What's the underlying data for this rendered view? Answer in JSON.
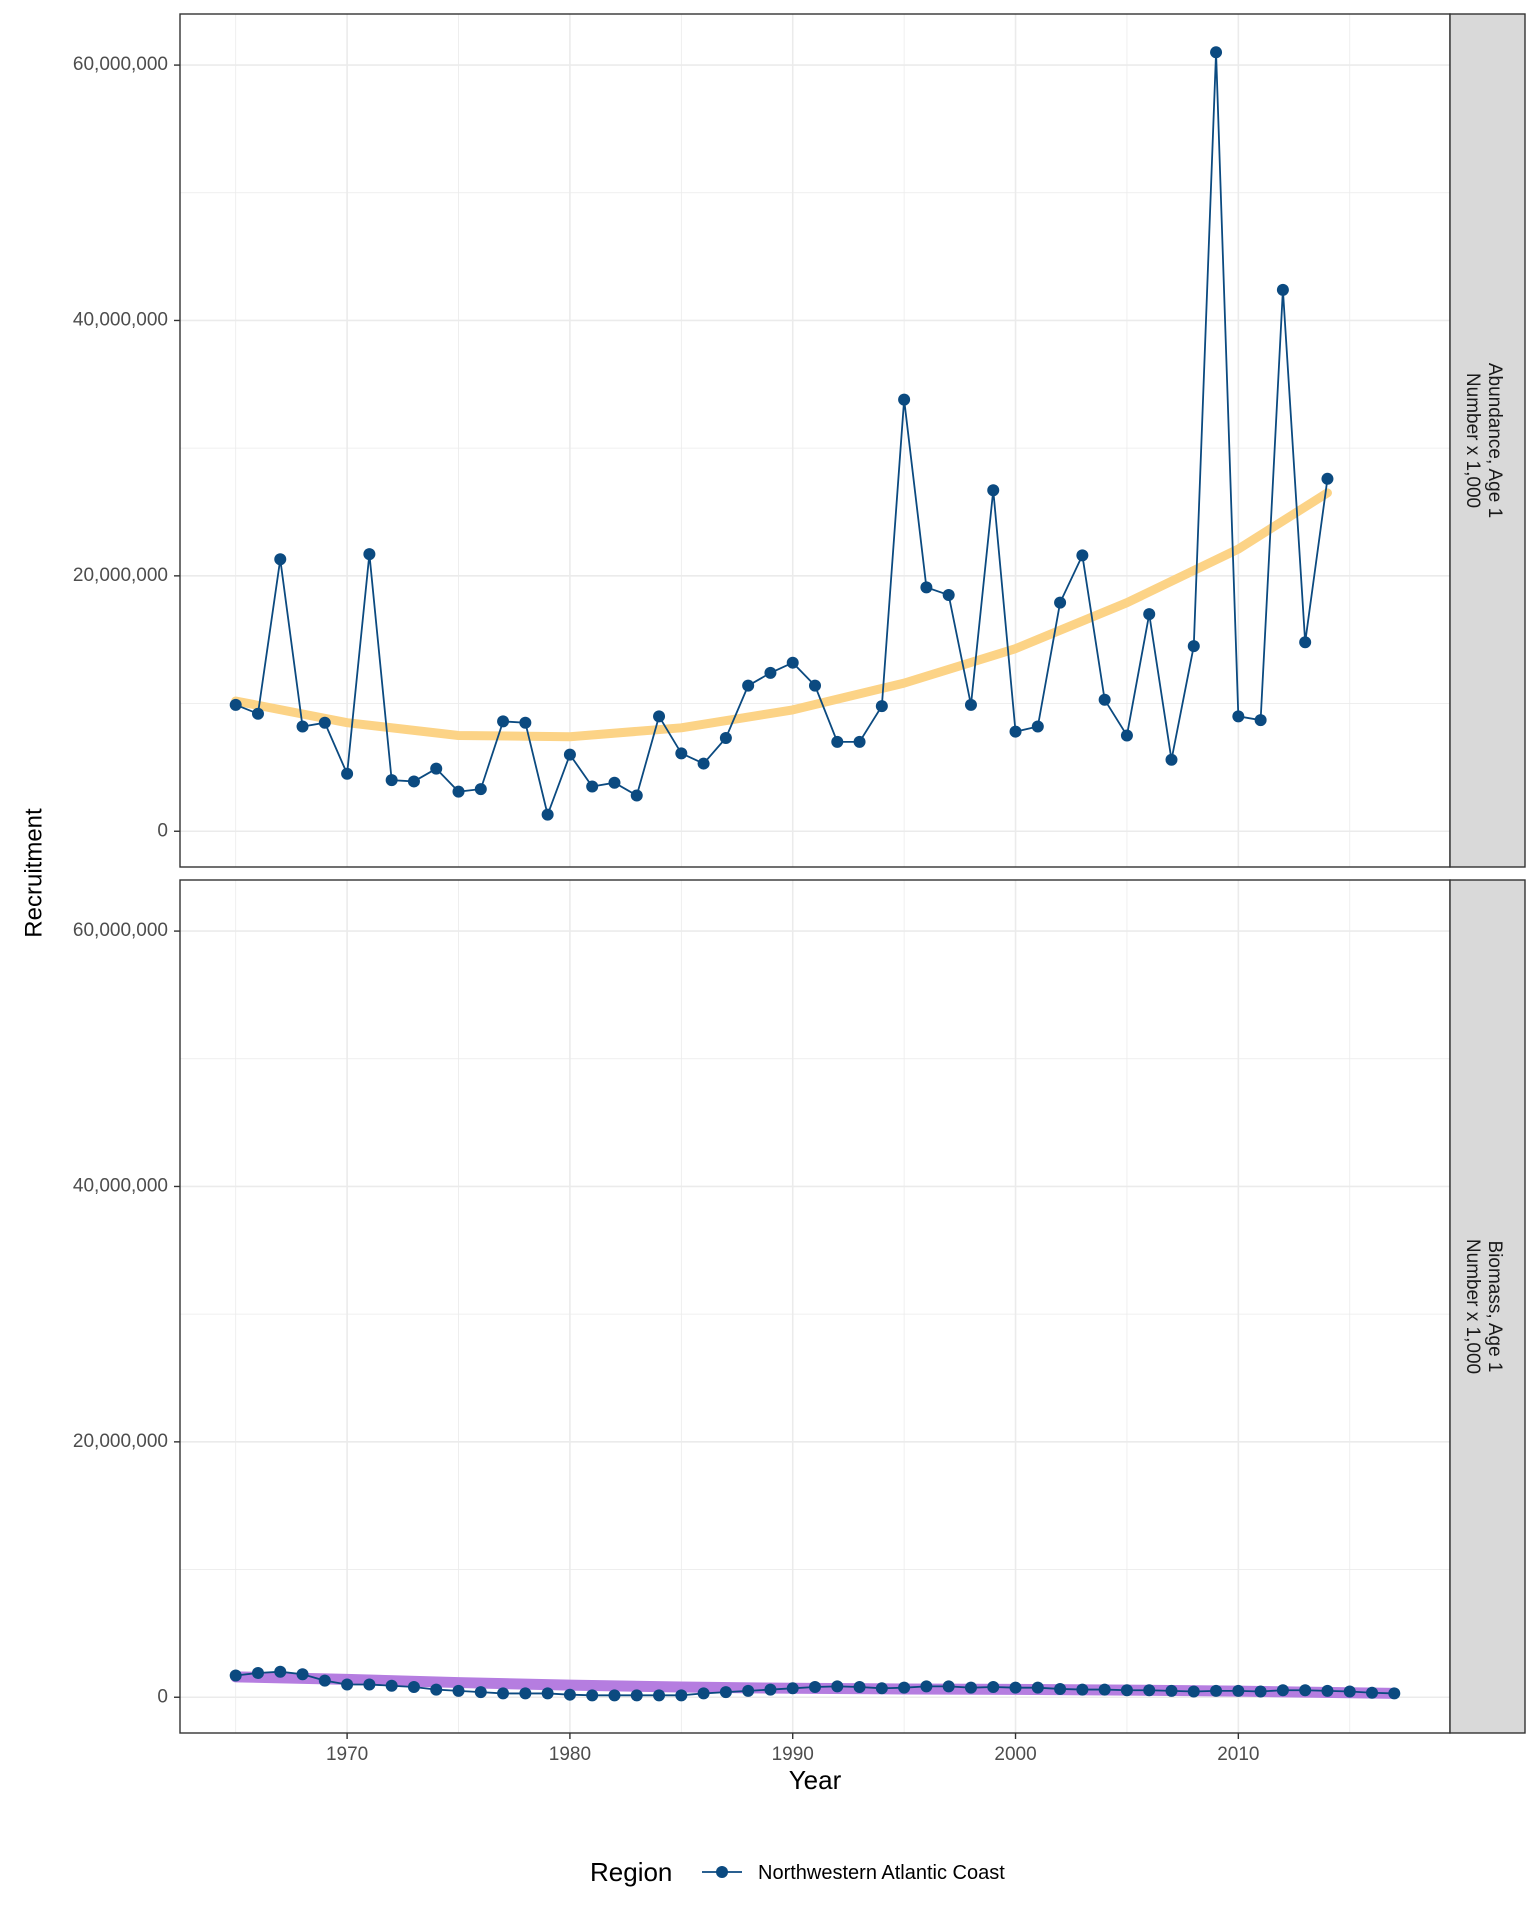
{
  "chart_data": {
    "type": "line",
    "ylabel": "Recruitment",
    "xlabel": "Year",
    "x_ticks": [
      "1970",
      "1980",
      "1990",
      "2000",
      "2010"
    ],
    "y_ticks": [
      "0",
      "20,000,000",
      "40,000,000",
      "60,000,000"
    ],
    "xlim": [
      1962.5,
      2019.5
    ],
    "ylim": [
      -2800000,
      64000000
    ],
    "grid": true,
    "legend": {
      "title": "Region",
      "position": "bottom",
      "entries": [
        "Northwestern Atlantic Coast"
      ]
    },
    "colors": {
      "series": "#0b4a80",
      "trend_top": "#fcd386",
      "trend_bottom": "#b57de0",
      "strip_bg": "#d9d9d9",
      "grid": "#ebebeb",
      "axis_text": "#4d4d4d"
    },
    "panels": [
      {
        "strip_line1": "Abundance, Age 1",
        "strip_line2": "Number x 1,000",
        "series": [
          {
            "name": "Northwestern Atlantic Coast",
            "x": [
              1965,
              1966,
              1967,
              1968,
              1969,
              1970,
              1971,
              1972,
              1973,
              1974,
              1975,
              1976,
              1977,
              1978,
              1979,
              1980,
              1981,
              1982,
              1983,
              1984,
              1985,
              1986,
              1987,
              1988,
              1989,
              1990,
              1991,
              1992,
              1993,
              1994,
              1995,
              1996,
              1997,
              1998,
              1999,
              2000,
              2001,
              2002,
              2003,
              2004,
              2005,
              2006,
              2007,
              2008,
              2009,
              2010,
              2011,
              2012,
              2013,
              2014
            ],
            "values": [
              9900000,
              9200000,
              21300000,
              8200000,
              8500000,
              4500000,
              21700000,
              4000000,
              3900000,
              4900000,
              3100000,
              3300000,
              8600000,
              8500000,
              1300000,
              6000000,
              3500000,
              3800000,
              2800000,
              9000000,
              6100000,
              5300000,
              7300000,
              11400000,
              12400000,
              13200000,
              11400000,
              7000000,
              7000000,
              9800000,
              33800000,
              19100000,
              18500000,
              9900000,
              26700000,
              7800000,
              8200000,
              17900000,
              21600000,
              10300000,
              7500000,
              17000000,
              5600000,
              14500000,
              61000000,
              9000000,
              8700000,
              42400000,
              14800000,
              27600000
            ]
          }
        ],
        "trend": {
          "x": [
            1965,
            1970,
            1975,
            1980,
            1985,
            1990,
            1995,
            2000,
            2005,
            2010,
            2014
          ],
          "values": [
            10200000,
            8500000,
            7500000,
            7400000,
            8100000,
            9500000,
            11600000,
            14300000,
            17900000,
            22100000,
            26500000
          ]
        }
      },
      {
        "strip_line1": "Biomass, Age 1",
        "strip_line2": "Number x 1,000",
        "series": [
          {
            "name": "Northwestern Atlantic Coast",
            "x": [
              1965,
              1966,
              1967,
              1968,
              1969,
              1970,
              1971,
              1972,
              1973,
              1974,
              1975,
              1976,
              1977,
              1978,
              1979,
              1980,
              1981,
              1982,
              1983,
              1984,
              1985,
              1986,
              1987,
              1988,
              1989,
              1990,
              1991,
              1992,
              1993,
              1994,
              1995,
              1996,
              1997,
              1998,
              1999,
              2000,
              2001,
              2002,
              2003,
              2004,
              2005,
              2006,
              2007,
              2008,
              2009,
              2010,
              2011,
              2012,
              2013,
              2014,
              2015,
              2016,
              2017
            ],
            "values": [
              1700000,
              1900000,
              2000000,
              1800000,
              1300000,
              1000000,
              1000000,
              900000,
              800000,
              600000,
              500000,
              400000,
              300000,
              300000,
              300000,
              200000,
              150000,
              150000,
              150000,
              150000,
              150000,
              300000,
              400000,
              500000,
              600000,
              700000,
              800000,
              850000,
              800000,
              700000,
              750000,
              850000,
              850000,
              750000,
              800000,
              750000,
              750000,
              650000,
              600000,
              600000,
              550000,
              550000,
              500000,
              450000,
              500000,
              500000,
              450000,
              550000,
              550000,
              500000,
              450000,
              350000,
              300000
            ]
          }
        ],
        "trend": {
          "x": [
            1965,
            1970,
            1975,
            1980,
            1985,
            1990,
            1995,
            2000,
            2005,
            2010,
            2017
          ],
          "values": [
            1600000,
            1400000,
            1150000,
            950000,
            800000,
            700000,
            650000,
            620000,
            560000,
            480000,
            300000
          ]
        }
      }
    ]
  }
}
